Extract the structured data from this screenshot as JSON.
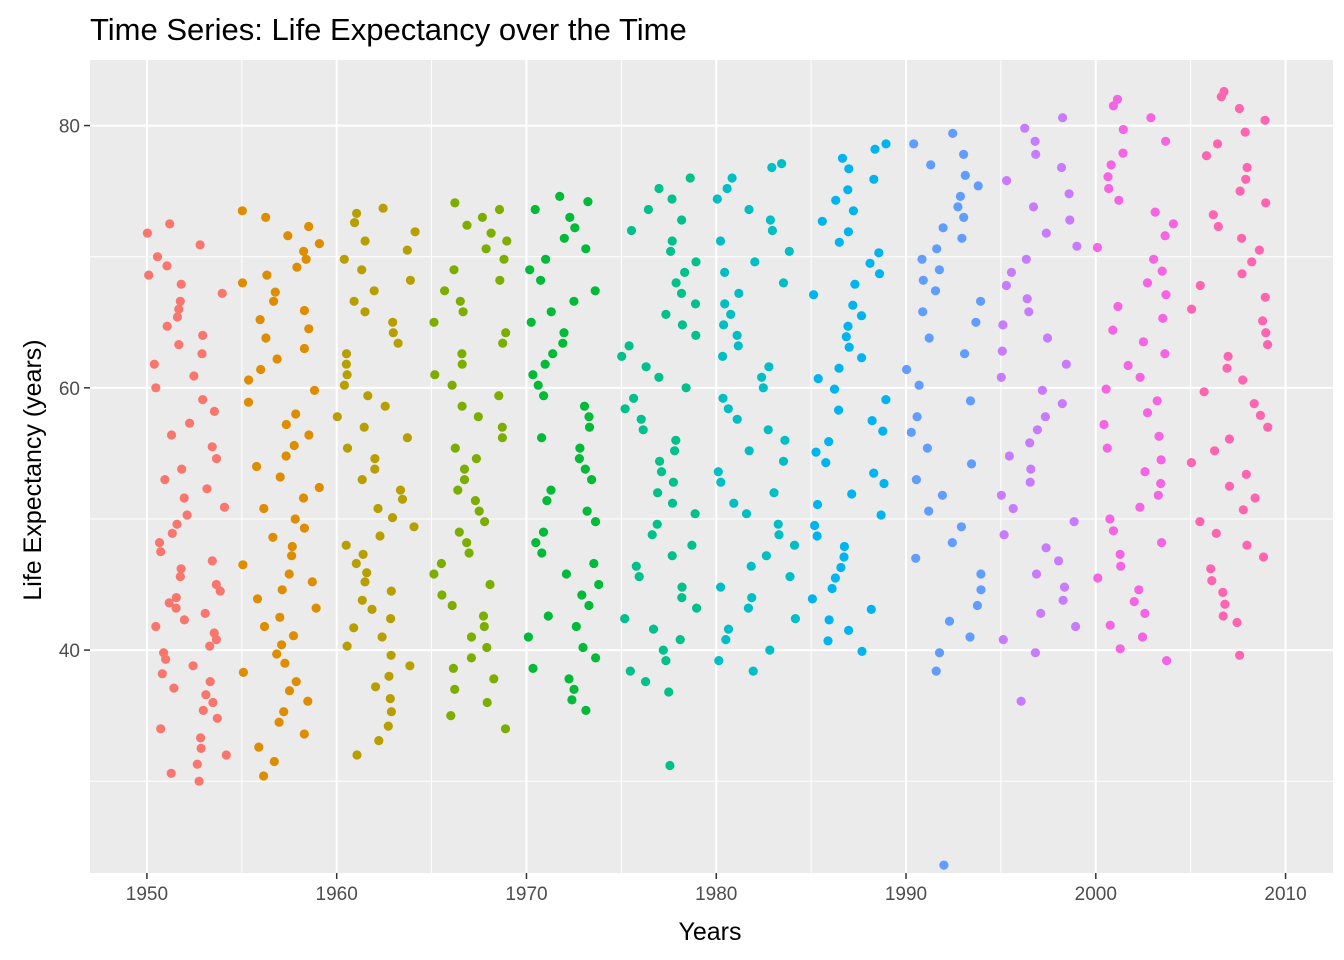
{
  "chart_data": {
    "type": "scatter",
    "title": "Time Series: Life Expectancy over the Time",
    "xlabel": "Years",
    "ylabel": "Life Expectancy (years)",
    "xlim": [
      1947,
      2012.5
    ],
    "ylim": [
      23,
      85
    ],
    "x_ticks": [
      "1950",
      "1960",
      "1970",
      "1980",
      "1990",
      "2000",
      "2010"
    ],
    "y_ticks": [
      "40",
      "60",
      "80"
    ],
    "grid": true,
    "legend": "none",
    "background": "#ebebeb",
    "note_points": "points jittered horizontally within each 5-year group",
    "series": [
      {
        "group": "1952",
        "color": "#F8766D",
        "x_range": [
          1950,
          1954.2
        ],
        "y": [
          30.0,
          30.6,
          31.3,
          32.0,
          32.5,
          33.3,
          34.0,
          34.8,
          35.4,
          36.0,
          36.6,
          37.1,
          37.6,
          38.2,
          38.8,
          39.3,
          39.8,
          40.3,
          40.8,
          41.3,
          41.8,
          42.3,
          42.8,
          43.2,
          43.6,
          44.0,
          44.5,
          45.0,
          45.6,
          46.2,
          46.8,
          47.5,
          48.2,
          48.9,
          49.6,
          50.3,
          50.9,
          51.6,
          52.3,
          53.0,
          53.8,
          54.6,
          55.5,
          56.4,
          57.3,
          58.2,
          59.1,
          60.0,
          60.9,
          61.8,
          62.6,
          63.3,
          64.0,
          64.7,
          65.4,
          66.0,
          66.6,
          67.2,
          67.9,
          68.6,
          69.3,
          70.0,
          70.9,
          71.8,
          72.5
        ]
      },
      {
        "group": "1957",
        "color": "#DE8C00",
        "x_range": [
          1955,
          1959.1
        ],
        "y": [
          30.4,
          31.5,
          32.6,
          33.6,
          34.5,
          35.3,
          36.1,
          36.9,
          37.6,
          38.3,
          39.0,
          39.7,
          40.4,
          41.1,
          41.8,
          42.5,
          43.2,
          43.9,
          44.6,
          45.2,
          45.8,
          46.5,
          47.2,
          47.9,
          48.6,
          49.3,
          50.0,
          50.8,
          51.6,
          52.4,
          53.2,
          54.0,
          54.8,
          55.6,
          56.4,
          57.2,
          58.0,
          58.9,
          59.8,
          60.6,
          61.4,
          62.2,
          63.0,
          63.8,
          64.5,
          65.2,
          65.9,
          66.6,
          67.3,
          68.0,
          68.6,
          69.2,
          69.8,
          70.4,
          71.0,
          71.6,
          72.3,
          73.0,
          73.5
        ]
      },
      {
        "group": "1962",
        "color": "#B79F00",
        "x_range": [
          1960,
          1964.2
        ],
        "y": [
          32.0,
          33.1,
          34.2,
          35.3,
          36.3,
          37.2,
          38.0,
          38.8,
          39.6,
          40.3,
          41.0,
          41.7,
          42.4,
          43.1,
          43.8,
          44.5,
          45.2,
          45.9,
          46.6,
          47.3,
          48.0,
          48.7,
          49.4,
          50.1,
          50.8,
          51.5,
          52.2,
          53.0,
          53.8,
          54.6,
          55.4,
          56.2,
          57.0,
          57.8,
          58.6,
          59.4,
          60.2,
          61.0,
          61.8,
          62.6,
          63.4,
          64.2,
          65.0,
          65.8,
          66.6,
          67.4,
          68.2,
          69.0,
          69.8,
          70.5,
          71.2,
          71.9,
          72.6,
          73.3,
          73.7
        ]
      },
      {
        "group": "1967",
        "color": "#7CAE00",
        "x_range": [
          1965,
          1969
        ],
        "y": [
          34.0,
          35.0,
          36.0,
          37.0,
          37.8,
          38.6,
          39.4,
          40.2,
          41.0,
          41.8,
          42.6,
          43.4,
          44.2,
          45.0,
          45.8,
          46.6,
          47.4,
          48.2,
          49.0,
          49.8,
          50.6,
          51.4,
          52.2,
          53.0,
          53.8,
          54.6,
          55.4,
          56.2,
          57.0,
          57.8,
          58.6,
          59.4,
          60.2,
          61.0,
          61.8,
          62.6,
          63.4,
          64.2,
          65.0,
          65.8,
          66.6,
          67.4,
          68.2,
          69.0,
          69.8,
          70.6,
          71.2,
          71.8,
          72.4,
          73.0,
          73.6,
          74.1
        ]
      },
      {
        "group": "1972",
        "color": "#00BA38",
        "x_range": [
          1970,
          1974
        ],
        "y": [
          35.4,
          36.2,
          37.0,
          37.8,
          38.6,
          39.4,
          40.2,
          41.0,
          41.8,
          42.6,
          43.4,
          44.2,
          45.0,
          45.8,
          46.6,
          47.4,
          48.2,
          49.0,
          49.8,
          50.6,
          51.4,
          52.2,
          53.0,
          53.8,
          54.6,
          55.4,
          56.2,
          57.0,
          57.8,
          58.6,
          59.4,
          60.2,
          61.0,
          61.8,
          62.6,
          63.4,
          64.2,
          65.0,
          65.8,
          66.6,
          67.4,
          68.2,
          69.0,
          69.8,
          70.6,
          71.4,
          72.2,
          73.0,
          73.6,
          74.2,
          74.6
        ]
      },
      {
        "group": "1977",
        "color": "#00C08B",
        "x_range": [
          1975,
          1979
        ],
        "y": [
          31.2,
          36.8,
          37.6,
          38.4,
          39.2,
          40.0,
          40.8,
          41.6,
          42.4,
          43.2,
          44.0,
          44.8,
          45.6,
          46.4,
          47.2,
          48.0,
          48.8,
          49.6,
          50.4,
          51.2,
          52.0,
          52.8,
          53.6,
          54.4,
          55.2,
          56.0,
          56.8,
          57.6,
          58.4,
          59.2,
          60.0,
          60.8,
          61.6,
          62.4,
          63.2,
          64.0,
          64.8,
          65.6,
          66.4,
          67.2,
          68.0,
          68.8,
          69.6,
          70.4,
          71.2,
          72.0,
          72.8,
          73.6,
          74.4,
          75.2,
          76.0
        ]
      },
      {
        "group": "1982",
        "color": "#00BFC4",
        "x_range": [
          1980,
          1984.2
        ],
        "y": [
          38.4,
          39.2,
          40.0,
          40.8,
          41.6,
          42.4,
          43.2,
          44.0,
          44.8,
          45.6,
          46.4,
          47.2,
          48.0,
          48.8,
          49.6,
          50.4,
          51.2,
          52.0,
          52.8,
          53.6,
          54.4,
          55.2,
          56.0,
          56.8,
          57.6,
          58.4,
          59.2,
          60.0,
          60.8,
          61.6,
          62.4,
          63.2,
          64.0,
          64.8,
          65.6,
          66.4,
          67.2,
          68.0,
          68.8,
          69.6,
          70.4,
          71.2,
          72.0,
          72.8,
          73.6,
          74.4,
          75.2,
          76.0,
          76.8,
          77.1
        ]
      },
      {
        "group": "1987",
        "color": "#00B4F0",
        "x_range": [
          1985,
          1989.1
        ],
        "y": [
          39.9,
          40.7,
          41.5,
          42.3,
          43.1,
          43.9,
          44.7,
          45.5,
          46.3,
          47.1,
          47.9,
          48.7,
          49.5,
          50.3,
          51.1,
          51.9,
          52.7,
          53.5,
          54.3,
          55.1,
          55.9,
          56.7,
          57.5,
          58.3,
          59.1,
          59.9,
          60.7,
          61.5,
          62.3,
          63.1,
          63.9,
          64.7,
          65.5,
          66.3,
          67.1,
          67.9,
          68.7,
          69.5,
          70.3,
          71.1,
          71.9,
          72.7,
          73.5,
          74.3,
          75.1,
          75.9,
          76.7,
          77.5,
          78.2,
          78.6
        ]
      },
      {
        "group": "1992",
        "color": "#619CFF",
        "x_range": [
          1990,
          1994.1
        ],
        "y": [
          23.6,
          38.4,
          39.8,
          41.0,
          42.2,
          43.4,
          44.6,
          45.8,
          47.0,
          48.2,
          49.4,
          50.6,
          51.8,
          53.0,
          54.2,
          55.4,
          56.6,
          57.8,
          59.0,
          60.2,
          61.4,
          62.6,
          63.8,
          65.0,
          65.8,
          66.6,
          67.4,
          68.2,
          69.0,
          69.8,
          70.6,
          71.4,
          72.2,
          73.0,
          73.8,
          74.6,
          75.4,
          76.2,
          77.0,
          77.8,
          78.6,
          79.4
        ]
      },
      {
        "group": "1997",
        "color": "#C77CFF",
        "x_range": [
          1995,
          1999.1
        ],
        "y": [
          36.1,
          39.8,
          40.8,
          41.8,
          42.8,
          43.8,
          44.8,
          45.8,
          46.8,
          47.8,
          48.8,
          49.8,
          50.8,
          51.8,
          52.8,
          53.8,
          54.8,
          55.8,
          56.8,
          57.8,
          58.8,
          59.8,
          60.8,
          61.8,
          62.8,
          63.8,
          64.8,
          65.8,
          66.8,
          67.8,
          68.8,
          69.8,
          70.8,
          71.8,
          72.8,
          73.8,
          74.8,
          75.8,
          76.8,
          77.8,
          78.8,
          79.8,
          80.6
        ]
      },
      {
        "group": "2002",
        "color": "#F564E3",
        "x_range": [
          2000,
          2004.1
        ],
        "y": [
          39.2,
          40.1,
          41.0,
          41.9,
          42.8,
          43.7,
          44.6,
          45.5,
          46.4,
          47.3,
          48.2,
          49.1,
          50.0,
          50.9,
          51.8,
          52.7,
          53.6,
          54.5,
          55.4,
          56.3,
          57.2,
          58.1,
          59.0,
          59.9,
          60.8,
          61.7,
          62.6,
          63.5,
          64.4,
          65.3,
          66.2,
          67.1,
          68.0,
          68.9,
          69.8,
          70.7,
          71.6,
          72.5,
          73.4,
          74.3,
          75.2,
          76.1,
          77.0,
          77.9,
          78.8,
          79.7,
          80.6,
          81.5,
          82.0
        ]
      },
      {
        "group": "2007",
        "color": "#FF64B0",
        "x_range": [
          2005,
          2009.1
        ],
        "y": [
          39.6,
          42.1,
          42.6,
          43.5,
          44.4,
          45.3,
          46.2,
          47.1,
          48.0,
          48.9,
          49.8,
          50.7,
          51.6,
          52.5,
          53.4,
          54.3,
          55.2,
          56.1,
          57.0,
          57.9,
          58.8,
          59.7,
          60.6,
          61.5,
          62.4,
          63.3,
          64.2,
          65.1,
          66.0,
          66.9,
          67.8,
          68.7,
          69.6,
          70.5,
          71.4,
          72.3,
          73.2,
          74.1,
          75.0,
          75.9,
          76.8,
          77.7,
          78.6,
          79.5,
          80.4,
          81.3,
          82.2,
          82.6
        ]
      }
    ]
  }
}
